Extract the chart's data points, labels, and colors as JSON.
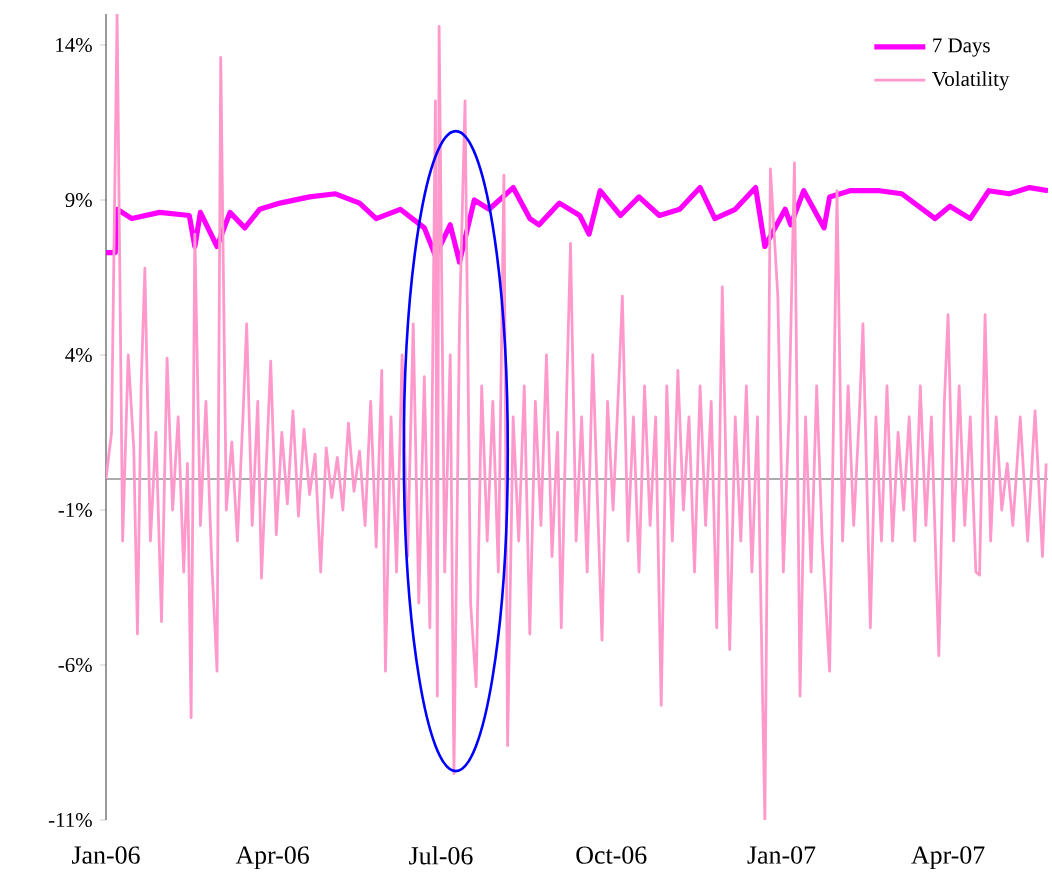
{
  "chart_data": {
    "type": "line",
    "xlim": [
      "2006-01-01",
      "2007-05-25"
    ],
    "ylim": [
      -11,
      15
    ],
    "xticks": [
      {
        "value": "2006-01-01",
        "label": "Jan-06"
      },
      {
        "value": "2006-04-01",
        "label": "Apr-06"
      },
      {
        "value": "2006-07-01",
        "label": "Jul-06"
      },
      {
        "value": "2006-10-01",
        "label": "Oct-06"
      },
      {
        "value": "2007-01-01",
        "label": "Jan-07"
      },
      {
        "value": "2007-04-01",
        "label": "Apr-07"
      }
    ],
    "yticks": [
      {
        "value": 14,
        "label": "14%"
      },
      {
        "value": 9,
        "label": "9%"
      },
      {
        "value": 4,
        "label": "4%"
      },
      {
        "value": -1,
        "label": "-1%"
      },
      {
        "value": -6,
        "label": "-6%"
      },
      {
        "value": -11,
        "label": "-11%"
      }
    ],
    "legend": "top right",
    "line_style": "solid",
    "series": [
      {
        "name": "7 Days",
        "color": "#ff00ff",
        "x": [
          "2006-01-01",
          "2006-01-06",
          "2006-01-07",
          "2006-01-15",
          "2006-01-30",
          "2006-02-15",
          "2006-02-18",
          "2006-02-21",
          "2006-03-02",
          "2006-03-09",
          "2006-03-17",
          "2006-03-25",
          "2006-04-05",
          "2006-04-21",
          "2006-05-05",
          "2006-05-18",
          "2006-05-27",
          "2006-06-09",
          "2006-06-22",
          "2006-06-28",
          "2006-07-06",
          "2006-07-11",
          "2006-07-19",
          "2006-07-27",
          "2006-08-09",
          "2006-08-18",
          "2006-08-23",
          "2006-09-03",
          "2006-09-14",
          "2006-09-19",
          "2006-09-25",
          "2006-10-06",
          "2006-10-16",
          "2006-10-27",
          "2006-11-07",
          "2006-11-18",
          "2006-11-26",
          "2006-12-07",
          "2006-12-18",
          "2006-12-23",
          "2007-01-03",
          "2007-01-06",
          "2007-01-13",
          "2007-01-24",
          "2007-01-27",
          "2007-02-07",
          "2007-02-23",
          "2007-03-07",
          "2007-03-25",
          "2007-04-02",
          "2007-04-13",
          "2007-04-23",
          "2007-05-04",
          "2007-05-15",
          "2007-05-25"
        ],
        "values": [
          7.3,
          7.3,
          8.7,
          8.4,
          8.6,
          8.5,
          7.5,
          8.6,
          7.5,
          8.6,
          8.1,
          8.7,
          8.9,
          9.1,
          9.2,
          8.9,
          8.4,
          8.7,
          8.1,
          7.2,
          8.2,
          7.0,
          9.0,
          8.7,
          9.4,
          8.4,
          8.2,
          8.9,
          8.5,
          7.9,
          9.3,
          8.5,
          9.1,
          8.5,
          8.7,
          9.4,
          8.4,
          8.7,
          9.4,
          7.5,
          8.7,
          8.2,
          9.3,
          8.1,
          9.1,
          9.3,
          9.3,
          9.2,
          8.4,
          8.8,
          8.4,
          9.3,
          9.2,
          9.4,
          9.3
        ]
      },
      {
        "name": "Volatility",
        "color": "#ff99cc",
        "x": [
          "2006-01-01",
          "2006-01-04",
          "2006-01-07",
          "2006-01-10",
          "2006-01-13",
          "2006-01-16",
          "2006-01-18",
          "2006-01-20",
          "2006-01-22",
          "2006-01-25",
          "2006-01-28",
          "2006-01-31",
          "2006-02-03",
          "2006-02-06",
          "2006-02-09",
          "2006-02-12",
          "2006-02-14",
          "2006-02-16",
          "2006-02-18",
          "2006-02-21",
          "2006-02-24",
          "2006-02-27",
          "2006-03-02",
          "2006-03-04",
          "2006-03-07",
          "2006-03-10",
          "2006-03-13",
          "2006-03-16",
          "2006-03-18",
          "2006-03-21",
          "2006-03-24",
          "2006-03-26",
          "2006-03-29",
          "2006-03-31",
          "2006-04-03",
          "2006-04-06",
          "2006-04-09",
          "2006-04-12",
          "2006-04-15",
          "2006-04-18",
          "2006-04-21",
          "2006-04-24",
          "2006-04-27",
          "2006-04-30",
          "2006-05-03",
          "2006-05-06",
          "2006-05-09",
          "2006-05-12",
          "2006-05-15",
          "2006-05-18",
          "2006-05-21",
          "2006-05-24",
          "2006-05-27",
          "2006-05-30",
          "2006-06-01",
          "2006-06-04",
          "2006-06-07",
          "2006-06-10",
          "2006-06-13",
          "2006-06-16",
          "2006-06-19",
          "2006-06-22",
          "2006-06-25",
          "2006-06-28",
          "2006-06-29",
          "2006-06-30",
          "2006-07-03",
          "2006-07-06",
          "2006-07-08",
          "2006-07-11",
          "2006-07-14",
          "2006-07-17",
          "2006-07-20",
          "2006-07-23",
          "2006-07-26",
          "2006-07-29",
          "2006-08-01",
          "2006-08-04",
          "2006-08-06",
          "2006-08-09",
          "2006-08-12",
          "2006-08-15",
          "2006-08-18",
          "2006-08-21",
          "2006-08-24",
          "2006-08-27",
          "2006-08-30",
          "2006-09-02",
          "2006-09-04",
          "2006-09-07",
          "2006-09-09",
          "2006-09-12",
          "2006-09-15",
          "2006-09-18",
          "2006-09-21",
          "2006-09-24",
          "2006-09-26",
          "2006-09-29",
          "2006-10-02",
          "2006-10-05",
          "2006-10-07",
          "2006-10-10",
          "2006-10-13",
          "2006-10-16",
          "2006-10-19",
          "2006-10-22",
          "2006-10-25",
          "2006-10-28",
          "2006-10-31",
          "2006-11-03",
          "2006-11-06",
          "2006-11-09",
          "2006-11-12",
          "2006-11-15",
          "2006-11-18",
          "2006-11-21",
          "2006-11-24",
          "2006-11-27",
          "2006-11-30",
          "2006-12-04",
          "2006-12-07",
          "2006-12-10",
          "2006-12-13",
          "2006-12-16",
          "2006-12-19",
          "2006-12-23",
          "2006-12-26",
          "2006-12-30",
          "2007-01-02",
          "2007-01-05",
          "2007-01-08",
          "2007-01-11",
          "2007-01-14",
          "2007-01-17",
          "2007-01-20",
          "2007-01-23",
          "2007-01-27",
          "2007-01-31",
          "2007-02-03",
          "2007-02-06",
          "2007-02-09",
          "2007-02-12",
          "2007-02-14",
          "2007-02-18",
          "2007-02-21",
          "2007-02-24",
          "2007-02-27",
          "2007-03-02",
          "2007-03-05",
          "2007-03-08",
          "2007-03-11",
          "2007-03-14",
          "2007-03-17",
          "2007-03-20",
          "2007-03-23",
          "2007-03-27",
          "2007-03-30",
          "2007-04-01",
          "2007-04-04",
          "2007-04-07",
          "2007-04-10",
          "2007-04-13",
          "2007-04-16",
          "2007-04-18",
          "2007-04-21",
          "2007-04-24",
          "2007-04-27",
          "2007-04-30",
          "2007-05-03",
          "2007-05-06",
          "2007-05-10",
          "2007-05-14",
          "2007-05-18",
          "2007-05-22",
          "2007-05-24"
        ],
        "values": [
          0,
          1.5,
          15,
          -2,
          4,
          1,
          -5,
          3,
          6.8,
          -2,
          1.5,
          -4.6,
          3.9,
          -1,
          2,
          -3,
          0.5,
          -7.7,
          7.9,
          -1.5,
          2.5,
          -2.5,
          -6.2,
          13.6,
          -1,
          1.2,
          -2,
          2,
          5.0,
          -1.5,
          2.5,
          -3.2,
          1,
          3.8,
          -1.8,
          1.5,
          -0.8,
          2.2,
          -1.2,
          1.6,
          -0.5,
          0.8,
          -3,
          1,
          -0.6,
          0.7,
          -1,
          1.8,
          -0.4,
          0.9,
          -1.5,
          2.5,
          -2.2,
          3.5,
          -6.2,
          2,
          -3,
          4,
          -2.5,
          5,
          -4,
          3.3,
          -4.8,
          12.2,
          -7.0,
          14.6,
          -3,
          4,
          -9.5,
          5,
          12.2,
          -4,
          -6.7,
          3,
          -2,
          2.5,
          -3,
          9.8,
          -8.6,
          2,
          -2,
          3,
          -5.0,
          2.5,
          -1.5,
          4,
          -2.5,
          1.5,
          -4.8,
          3,
          7.6,
          -2,
          2,
          -3,
          4,
          -1.5,
          -5.2,
          2.5,
          -1,
          3,
          5.9,
          -2,
          2,
          -3,
          3,
          -1.5,
          2,
          -7.3,
          3,
          -2,
          3.5,
          -1,
          2,
          -3,
          3,
          -1.5,
          2.5,
          -4.8,
          6.2,
          -5.5,
          2,
          -2,
          3,
          -3,
          2,
          -11,
          10.0,
          5.9,
          -3,
          2,
          10.2,
          -7.0,
          2,
          -3,
          3,
          -2,
          -6.2,
          9.3,
          -2,
          3,
          -1.5,
          2,
          5.0,
          -4.8,
          2,
          -2,
          3,
          -2,
          1.5,
          -1,
          2,
          -2,
          3,
          -1.5,
          2,
          -5.7,
          2.5,
          5.3,
          -2,
          3,
          -1.5,
          2,
          -3,
          -3.1,
          5.3,
          -2,
          2,
          -1,
          0.5,
          -1.5,
          2,
          -2,
          2.2,
          -2.5,
          0.5
        ]
      }
    ]
  }
}
